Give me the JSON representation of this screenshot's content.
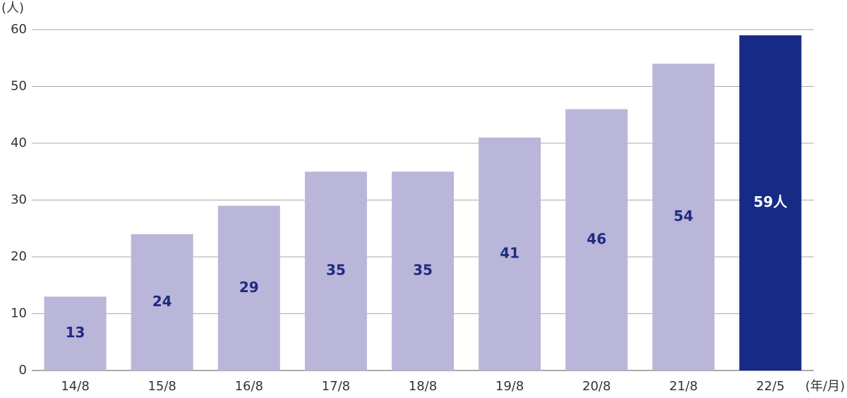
{
  "chart_data": {
    "type": "bar",
    "y_unit": "(人)",
    "x_unit": "(年/月)",
    "categories": [
      "14/8",
      "15/8",
      "16/8",
      "17/8",
      "18/8",
      "19/8",
      "20/8",
      "21/8",
      "22/5"
    ],
    "values": [
      13,
      24,
      29,
      35,
      35,
      41,
      46,
      54,
      59
    ],
    "value_labels": [
      "13",
      "24",
      "29",
      "35",
      "35",
      "41",
      "46",
      "54",
      "59人"
    ],
    "colors": [
      "#b9b6d9",
      "#b9b6d9",
      "#b9b6d9",
      "#b9b6d9",
      "#b9b6d9",
      "#b9b6d9",
      "#b9b6d9",
      "#b9b6d9",
      "#162a86"
    ],
    "label_colors": [
      "#1f2a80",
      "#1f2a80",
      "#1f2a80",
      "#1f2a80",
      "#1f2a80",
      "#1f2a80",
      "#1f2a80",
      "#1f2a80",
      "#ffffff"
    ],
    "ylim": [
      0,
      60
    ],
    "yticks": [
      0,
      10,
      20,
      30,
      40,
      50,
      60
    ],
    "grid": true
  }
}
